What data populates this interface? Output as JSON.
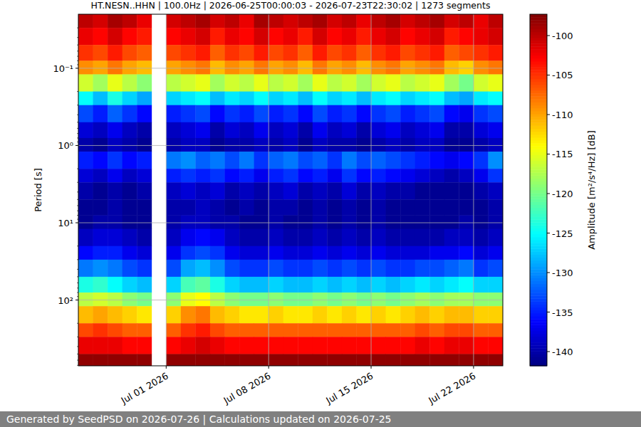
{
  "chart_data": {
    "type": "heatmap",
    "title": "HT.NESN..HHN | 100.0Hz | 2026-06-25T00:00:03 - 2026-07-23T22:30:02 | 1273 segments",
    "y_label": "Period [s]",
    "colorbar_label": "Amplitude [m²/s⁴/Hz] [dB]",
    "footer": "Generated by SeedPSD on 2026-07-26 | Calculations updated on 2026-07-25",
    "log": "y",
    "grid": true,
    "color": "jet",
    "xlim": [
      "2026-06-25",
      "2026-07-24"
    ],
    "xticks": [
      {
        "value": "2026-07-01",
        "label": "Jul 01 2026"
      },
      {
        "value": "2026-07-08",
        "label": "Jul 08 2026"
      },
      {
        "value": "2026-07-15",
        "label": "Jul 15 2026"
      },
      {
        "value": "2026-07-22",
        "label": "Jul 22 2026"
      }
    ],
    "ylim": [
      0.02,
      710
    ],
    "yticks": [
      {
        "value": 0.1,
        "label": "10⁻¹"
      },
      {
        "value": 1,
        "label": "10⁰"
      },
      {
        "value": 10,
        "label": "10¹"
      },
      {
        "value": 100,
        "label": "10²"
      }
    ],
    "clim": [
      -141.8,
      -97.3
    ],
    "cticks": [
      -100,
      -105,
      -110,
      -115,
      -120,
      -125,
      -130,
      -135,
      -140
    ],
    "x_bins": [
      "2026-06-25",
      "2026-06-26",
      "2026-06-27",
      "2026-06-28",
      "2026-06-29",
      "2026-06-30",
      "2026-07-01",
      "2026-07-02",
      "2026-07-03",
      "2026-07-04",
      "2026-07-05",
      "2026-07-06",
      "2026-07-07",
      "2026-07-08",
      "2026-07-09",
      "2026-07-10",
      "2026-07-11",
      "2026-07-12",
      "2026-07-13",
      "2026-07-14",
      "2026-07-15",
      "2026-07-16",
      "2026-07-17",
      "2026-07-18",
      "2026-07-19",
      "2026-07-20",
      "2026-07-21",
      "2026-07-22",
      "2026-07-23",
      "2026-07-24"
    ],
    "y_bins": [
      0.02,
      0.03,
      0.05,
      0.08,
      0.12,
      0.2,
      0.3,
      0.5,
      0.8,
      1.2,
      2,
      3,
      5,
      8,
      12,
      20,
      30,
      50,
      80,
      120,
      200,
      300,
      500,
      710
    ],
    "values": [
      [
        -100,
        -101,
        -99,
        -100,
        -102,
        null,
        -101,
        -100,
        -99,
        -101,
        -100,
        -102,
        -99,
        -100,
        -101,
        -100,
        -99,
        -101,
        -100,
        -102,
        -100,
        -99,
        -101,
        -100,
        -99,
        -101,
        -100,
        -102,
        -100
      ],
      [
        -102,
        -103,
        -101,
        -103,
        -104,
        null,
        -103,
        -102,
        -101,
        -104,
        -102,
        -103,
        -101,
        -103,
        -102,
        -104,
        -101,
        -103,
        -102,
        -104,
        -102,
        -101,
        -103,
        -102,
        -101,
        -104,
        -103,
        -102,
        -101
      ],
      [
        -105,
        -106,
        -104,
        -106,
        -107,
        null,
        -106,
        -105,
        -104,
        -107,
        -105,
        -106,
        -104,
        -106,
        -105,
        -107,
        -104,
        -106,
        -105,
        -107,
        -105,
        -104,
        -106,
        -105,
        -104,
        -107,
        -106,
        -105,
        -104
      ],
      [
        -109,
        -110,
        -108,
        -110,
        -111,
        null,
        -110,
        -109,
        -108,
        -111,
        -109,
        -110,
        -108,
        -110,
        -109,
        -111,
        -108,
        -110,
        -109,
        -111,
        -109,
        -108,
        -110,
        -109,
        -108,
        -111,
        -112,
        -109,
        -108
      ],
      [
        -116,
        -118,
        -115,
        -117,
        -119,
        null,
        -117,
        -116,
        -115,
        -118,
        -116,
        -117,
        -115,
        -117,
        -116,
        -118,
        -115,
        -117,
        -116,
        -118,
        -116,
        -115,
        -117,
        -116,
        -115,
        -118,
        -120,
        -116,
        -115
      ],
      [
        -125,
        -128,
        -124,
        -127,
        -129,
        null,
        -127,
        -126,
        -125,
        -128,
        -126,
        -127,
        -125,
        -127,
        -126,
        -128,
        -125,
        -127,
        -126,
        -128,
        -126,
        -125,
        -127,
        -126,
        -125,
        -128,
        -129,
        -126,
        -125
      ],
      [
        -133,
        -135,
        -132,
        -134,
        -136,
        null,
        -135,
        -134,
        -133,
        -136,
        -134,
        -135,
        -133,
        -135,
        -134,
        -136,
        -133,
        -135,
        -134,
        -136,
        -134,
        -133,
        -135,
        -134,
        -133,
        -136,
        -137,
        -134,
        -133
      ],
      [
        -138,
        -139,
        -137,
        -139,
        -140,
        null,
        -139,
        -138,
        -137,
        -140,
        -138,
        -139,
        -137,
        -139,
        -138,
        -140,
        -137,
        -139,
        -138,
        -140,
        -138,
        -137,
        -139,
        -138,
        -137,
        -140,
        -140,
        -138,
        -137
      ],
      [
        -140,
        -141,
        -139,
        -140,
        -141,
        null,
        -140,
        -139,
        -139,
        -141,
        -140,
        -140,
        -139,
        -140,
        -139,
        -141,
        -139,
        -140,
        -140,
        -141,
        -140,
        -139,
        -140,
        -139,
        -139,
        -141,
        -141,
        -140,
        -139
      ],
      [
        -135,
        -136,
        -134,
        -136,
        -135,
        null,
        -131,
        -130,
        -132,
        -131,
        -133,
        -131,
        -134,
        -132,
        -131,
        -133,
        -132,
        -134,
        -131,
        -133,
        -132,
        -133,
        -134,
        -135,
        -136,
        -137,
        -136,
        -134,
        -130
      ],
      [
        -138,
        -139,
        -137,
        -139,
        -138,
        null,
        -135,
        -134,
        -135,
        -134,
        -136,
        -135,
        -137,
        -135,
        -134,
        -136,
        -135,
        -137,
        -134,
        -136,
        -135,
        -136,
        -137,
        -138,
        -139,
        -140,
        -139,
        -137,
        -134
      ],
      [
        -140,
        -141,
        -140,
        -141,
        -140,
        null,
        -139,
        -138,
        -139,
        -138,
        -140,
        -139,
        -140,
        -139,
        -138,
        -140,
        -139,
        -140,
        -138,
        -140,
        -139,
        -140,
        -140,
        -141,
        -141,
        -141,
        -141,
        -140,
        -139
      ],
      [
        -141,
        -141,
        -140,
        -141,
        -141,
        null,
        -140,
        -140,
        -139,
        -140,
        -141,
        -140,
        -141,
        -140,
        -140,
        -141,
        -140,
        -141,
        -140,
        -141,
        -140,
        -141,
        -141,
        -141,
        -141,
        -141,
        -141,
        -141,
        -140
      ],
      [
        -141,
        -140,
        -140,
        -141,
        -141,
        null,
        -140,
        -139,
        -139,
        -140,
        -140,
        -141,
        -141,
        -140,
        -141,
        -141,
        -140,
        -141,
        -140,
        -141,
        -140,
        -141,
        -141,
        -141,
        -141,
        -141,
        -140,
        -141,
        -140
      ],
      [
        -139,
        -138,
        -138,
        -139,
        -140,
        null,
        -139,
        -137,
        -136,
        -137,
        -139,
        -140,
        -140,
        -139,
        -140,
        -140,
        -139,
        -140,
        -139,
        -140,
        -139,
        -140,
        -140,
        -140,
        -140,
        -139,
        -139,
        -140,
        -139
      ],
      [
        -136,
        -135,
        -135,
        -137,
        -138,
        null,
        -137,
        -134,
        -133,
        -134,
        -137,
        -138,
        -138,
        -137,
        -138,
        -138,
        -137,
        -138,
        -137,
        -138,
        -137,
        -138,
        -138,
        -138,
        -137,
        -137,
        -136,
        -138,
        -137
      ],
      [
        -131,
        -130,
        -131,
        -133,
        -134,
        null,
        -133,
        -129,
        -128,
        -130,
        -133,
        -134,
        -134,
        -133,
        -134,
        -134,
        -133,
        -134,
        -133,
        -134,
        -133,
        -134,
        -134,
        -133,
        -133,
        -132,
        -131,
        -134,
        -133
      ],
      [
        -124,
        -123,
        -125,
        -127,
        -128,
        null,
        -127,
        -122,
        -121,
        -124,
        -127,
        -128,
        -128,
        -127,
        -128,
        -128,
        -127,
        -128,
        -127,
        -128,
        -127,
        -128,
        -127,
        -126,
        -127,
        -126,
        -125,
        -127,
        -127
      ],
      [
        -117,
        -116,
        -117,
        -119,
        -120,
        null,
        -119,
        -115,
        -114,
        -117,
        -119,
        -120,
        -120,
        -119,
        -120,
        -120,
        -119,
        -120,
        -119,
        -120,
        -119,
        -120,
        -119,
        -118,
        -119,
        -118,
        -118,
        -119,
        -119
      ],
      [
        -111,
        -110,
        -111,
        -112,
        -113,
        null,
        -112,
        -109,
        -108,
        -111,
        -112,
        -113,
        -113,
        -112,
        -113,
        -113,
        -112,
        -113,
        -112,
        -113,
        -112,
        -113,
        -112,
        -111,
        -112,
        -111,
        -111,
        -112,
        -112
      ],
      [
        -106,
        -105,
        -106,
        -107,
        -107,
        null,
        -107,
        -105,
        -104,
        -106,
        -107,
        -107,
        -107,
        -107,
        -107,
        -107,
        -107,
        -107,
        -107,
        -107,
        -107,
        -107,
        -107,
        -106,
        -107,
        -106,
        -106,
        -107,
        -107
      ],
      [
        -102,
        -102,
        -102,
        -103,
        -103,
        null,
        -103,
        -102,
        -101,
        -102,
        -103,
        -103,
        -103,
        -103,
        -103,
        -103,
        -103,
        -103,
        -103,
        -103,
        -103,
        -103,
        -103,
        -102,
        -103,
        -102,
        -102,
        -103,
        -103
      ],
      [
        -98,
        -98,
        -98,
        -98,
        -98,
        null,
        -98,
        -98,
        -98,
        -98,
        -98,
        -98,
        -98,
        -98,
        -98,
        -98,
        -98,
        -98,
        -98,
        -98,
        -98,
        -98,
        -98,
        -98,
        -98,
        -98,
        -98,
        -98,
        -98
      ]
    ]
  }
}
